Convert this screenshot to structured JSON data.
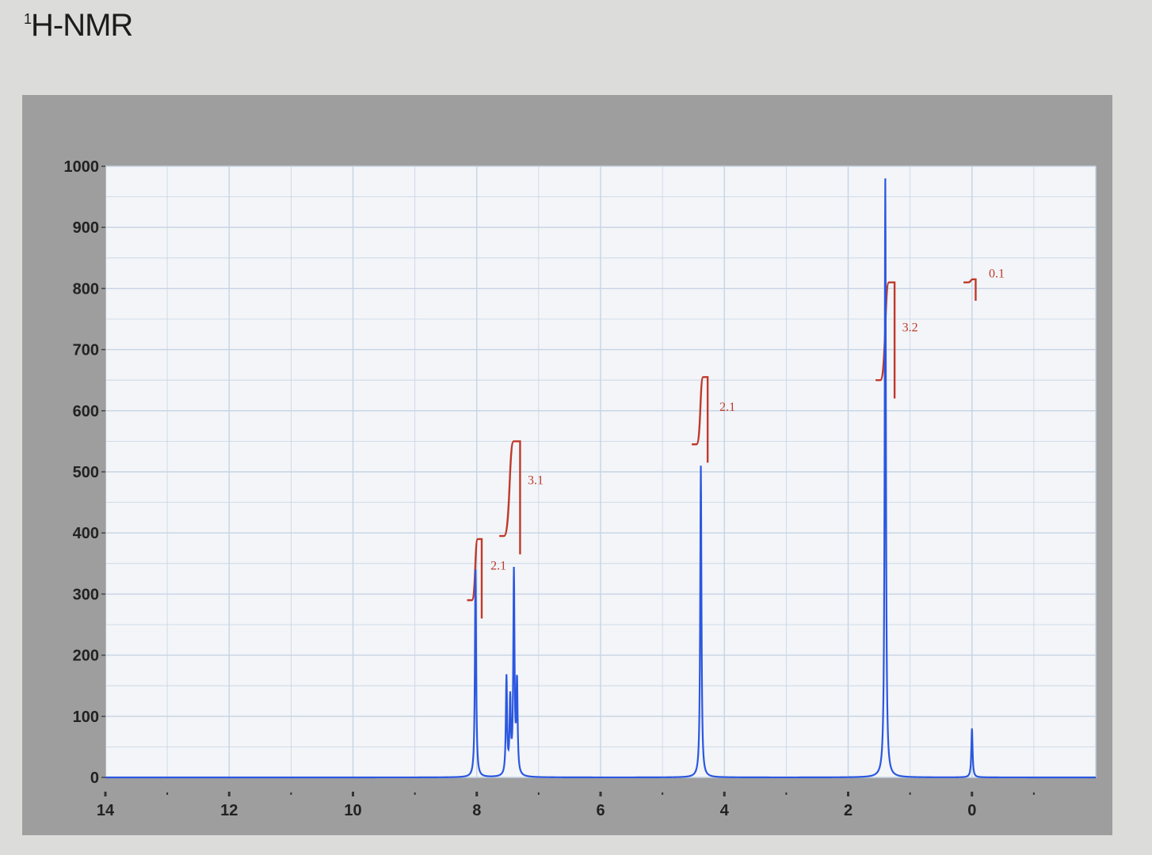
{
  "title": {
    "prefix": "1",
    "text": "H-NMR"
  },
  "colors": {
    "spectrum": "#2b57e0",
    "integral": "#c0392b",
    "grid": "#c6d4e4",
    "plot_bg": "#f3f5f8",
    "frame": "#9e9e9e"
  },
  "chart_data": {
    "type": "line",
    "x_axis": {
      "range": [
        14,
        -2
      ],
      "reversed": true,
      "ticks": [
        14,
        12,
        10,
        8,
        6,
        4,
        2,
        0
      ],
      "tick_labels": [
        "14",
        "12",
        "10",
        "8",
        "6",
        "4",
        "2",
        "0"
      ]
    },
    "y_axis": {
      "range": [
        0,
        1000
      ],
      "ticks": [
        0,
        100,
        200,
        300,
        400,
        500,
        600,
        700,
        800,
        900,
        1000
      ],
      "tick_labels": [
        "0",
        "100",
        "200",
        "300",
        "400",
        "500",
        "600",
        "700",
        "800",
        "900",
        "1000"
      ]
    },
    "grid": true,
    "series": [
      {
        "peaks": [
          {
            "ppm": 8.02,
            "height": 340
          },
          {
            "ppm": 7.52,
            "height": 160
          },
          {
            "ppm": 7.46,
            "height": 120
          },
          {
            "ppm": 7.4,
            "height": 330
          },
          {
            "ppm": 7.35,
            "height": 150
          },
          {
            "ppm": 4.38,
            "height": 510
          },
          {
            "ppm": 1.4,
            "height": 980
          },
          {
            "ppm": 0.0,
            "height": 80
          }
        ]
      }
    ],
    "integrals": [
      {
        "label": "2.1",
        "ppm_start": 8.08,
        "ppm_end": 7.92,
        "low": 290,
        "high": 390,
        "label_ppm": 7.65,
        "label_y": 340
      },
      {
        "label": "3.1",
        "ppm_start": 7.56,
        "ppm_end": 7.3,
        "low": 395,
        "high": 550,
        "label_ppm": 7.05,
        "label_y": 480
      },
      {
        "label": "2.1",
        "ppm_start": 4.45,
        "ppm_end": 4.27,
        "low": 545,
        "high": 655,
        "label_ppm": 3.95,
        "label_y": 600
      },
      {
        "label": "3.2",
        "ppm_start": 1.48,
        "ppm_end": 1.25,
        "low": 650,
        "high": 810,
        "label_ppm": 1.0,
        "label_y": 730
      },
      {
        "label": "0.1",
        "ppm_start": 0.06,
        "ppm_end": -0.06,
        "low": 810,
        "high": 815,
        "label_ppm": -0.4,
        "label_y": 818
      }
    ]
  }
}
